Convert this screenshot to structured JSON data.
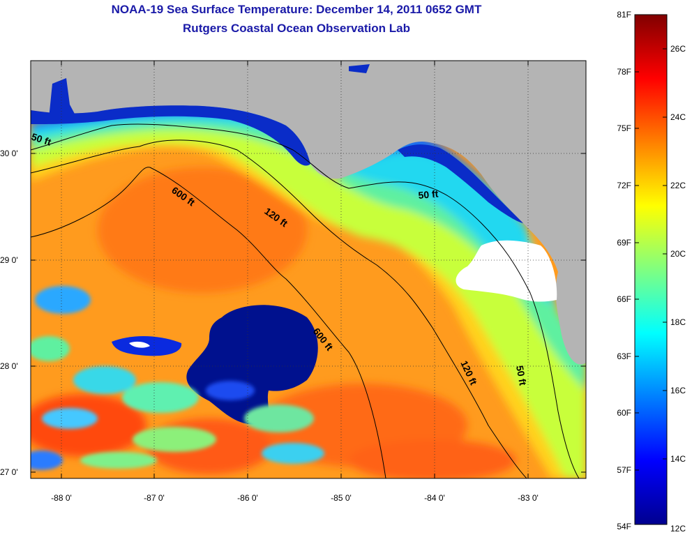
{
  "title": {
    "line1": "NOAA-19 Sea Surface Temperature:  December 14, 2011 0652 GMT",
    "line2": "Rutgers Coastal Ocean Observation Lab"
  },
  "map": {
    "lon_ticks": [
      "-88 0'",
      "-87 0'",
      "-86 0'",
      "-85 0'",
      "-84 0'",
      "-83 0'"
    ],
    "lat_ticks": [
      "30 0'",
      "29 0'",
      "28 0'",
      "27 0'"
    ],
    "contour_labels": [
      "50 ft",
      "600 ft",
      "120 ft",
      "50 ft",
      "600 ft",
      "120 ft",
      "50 ft"
    ],
    "colors": {
      "land": "#b4b4b4",
      "cloud": "#ffffff",
      "contour": "#000000"
    }
  },
  "colorbar": {
    "fahrenheit": [
      "81F",
      "78F",
      "75F",
      "72F",
      "69F",
      "66F",
      "63F",
      "60F",
      "57F",
      "54F"
    ],
    "celsius": [
      "26C",
      "24C",
      "22C",
      "20C",
      "18C",
      "16C",
      "14C",
      "12C"
    ],
    "colormap": "jet"
  }
}
